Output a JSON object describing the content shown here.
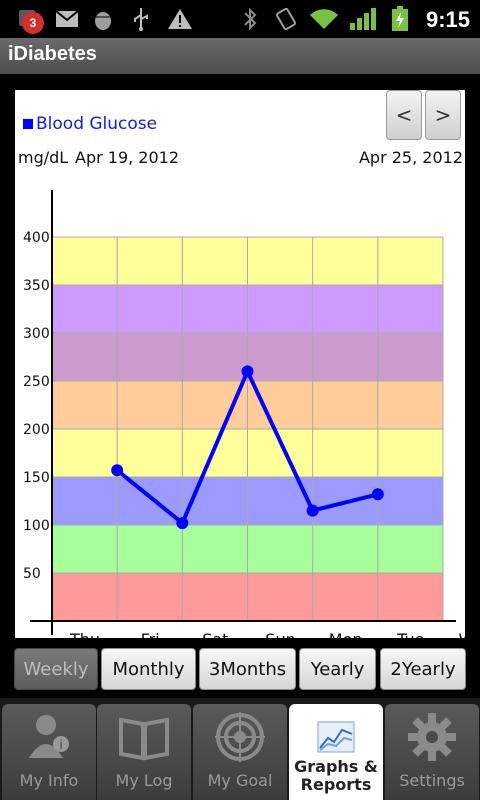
{
  "status_bar": {
    "notification_count": "3",
    "time": "9:15",
    "icons": [
      "notification-icon",
      "gmail-icon",
      "android-debug-icon",
      "usb-icon",
      "warning-icon",
      "bluetooth-icon",
      "vibrate-icon",
      "wifi-icon",
      "signal-icon",
      "battery-charging-icon"
    ]
  },
  "app": {
    "title": "iDiabetes"
  },
  "chart_header": {
    "legend_label": "Blood Glucose",
    "prev_label": "<",
    "next_label": ">",
    "unit": "mg/dL",
    "date_start": "Apr 19, 2012",
    "date_end": "Apr 25, 2012"
  },
  "chart_data": {
    "type": "line",
    "title": "",
    "xlabel": "",
    "ylabel": "mg/dL",
    "categories": [
      "Thu",
      "Fri",
      "Sat",
      "Sun",
      "Mon",
      "Tue",
      "Wed"
    ],
    "series": [
      {
        "name": "Blood Glucose",
        "values": [
          null,
          157,
          102,
          260,
          115,
          132,
          null
        ],
        "color": "#0000ff"
      }
    ],
    "ylim": [
      0,
      400
    ],
    "yticks": [
      50,
      100,
      150,
      200,
      250,
      300,
      350,
      400
    ],
    "bands": [
      {
        "from": 0,
        "to": 50,
        "color": "#ff9a9a"
      },
      {
        "from": 50,
        "to": 100,
        "color": "#a6ff9a"
      },
      {
        "from": 100,
        "to": 150,
        "color": "#9a9aff"
      },
      {
        "from": 150,
        "to": 200,
        "color": "#ffff9a"
      },
      {
        "from": 200,
        "to": 250,
        "color": "#ffcd9a"
      },
      {
        "from": 250,
        "to": 300,
        "color": "#cd9acd"
      },
      {
        "from": 300,
        "to": 350,
        "color": "#cd9aff"
      },
      {
        "from": 350,
        "to": 400,
        "color": "#ffff9a"
      }
    ],
    "grid": true
  },
  "periods": [
    {
      "label": "Weekly",
      "active": true
    },
    {
      "label": "Monthly",
      "active": false
    },
    {
      "label": "3Months",
      "active": false
    },
    {
      "label": "Yearly",
      "active": false
    },
    {
      "label": "2Yearly",
      "active": false
    }
  ],
  "tabs": [
    {
      "label": "My Info",
      "icon": "person-info-icon",
      "active": false
    },
    {
      "label": "My Log",
      "icon": "open-book-icon",
      "active": false
    },
    {
      "label": "My Goal",
      "icon": "target-icon",
      "active": false
    },
    {
      "label": "Graphs &\nReports",
      "icon": "chart-icon",
      "active": true
    },
    {
      "label": "Settings",
      "icon": "gear-icon",
      "active": false
    }
  ]
}
